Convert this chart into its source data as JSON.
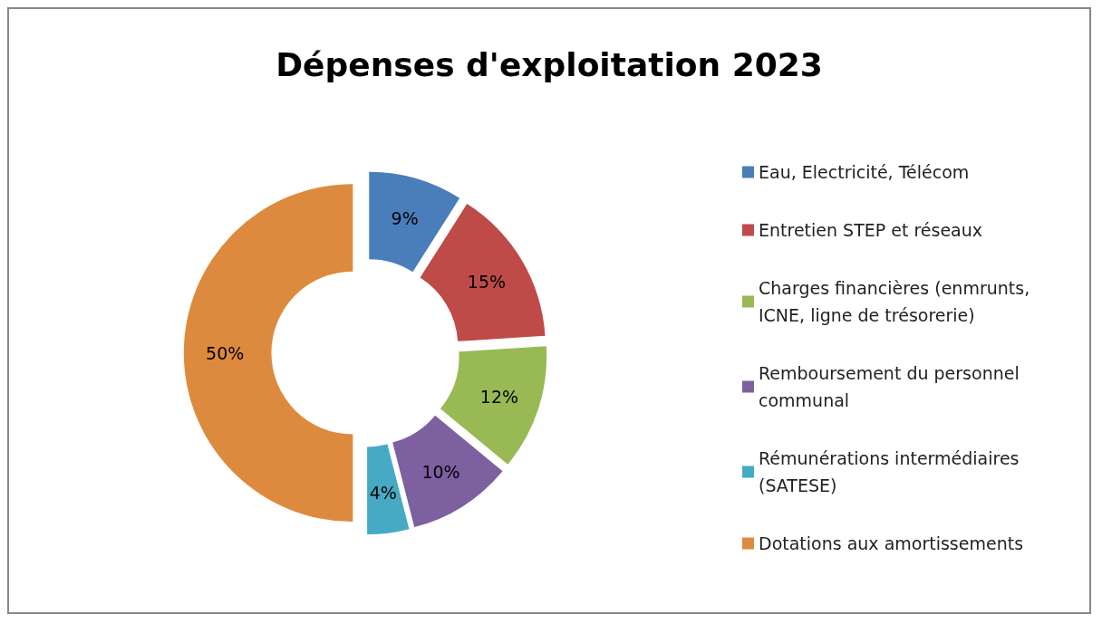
{
  "chart_data": {
    "type": "donut",
    "title": "Dépenses d'exploitation 2023",
    "categories": [
      "Eau, Electricité, Télécom",
      "Entretien STEP et réseaux",
      "Charges financières (enmrunts, ICNE, ligne de trésorerie)",
      "Remboursement du personnel communal",
      "Rémunérations intermédiaires (SATESE)",
      "Dotations aux amortissements"
    ],
    "values": [
      9,
      15,
      12,
      10,
      4,
      50
    ],
    "colors": [
      "#4a7ebb",
      "#be4b48",
      "#98b954",
      "#7d60a0",
      "#46aac5",
      "#dd8a3f"
    ],
    "value_labels": [
      "9%",
      "15%",
      "12%",
      "10%",
      "4%",
      "50%"
    ],
    "legend": "right"
  }
}
